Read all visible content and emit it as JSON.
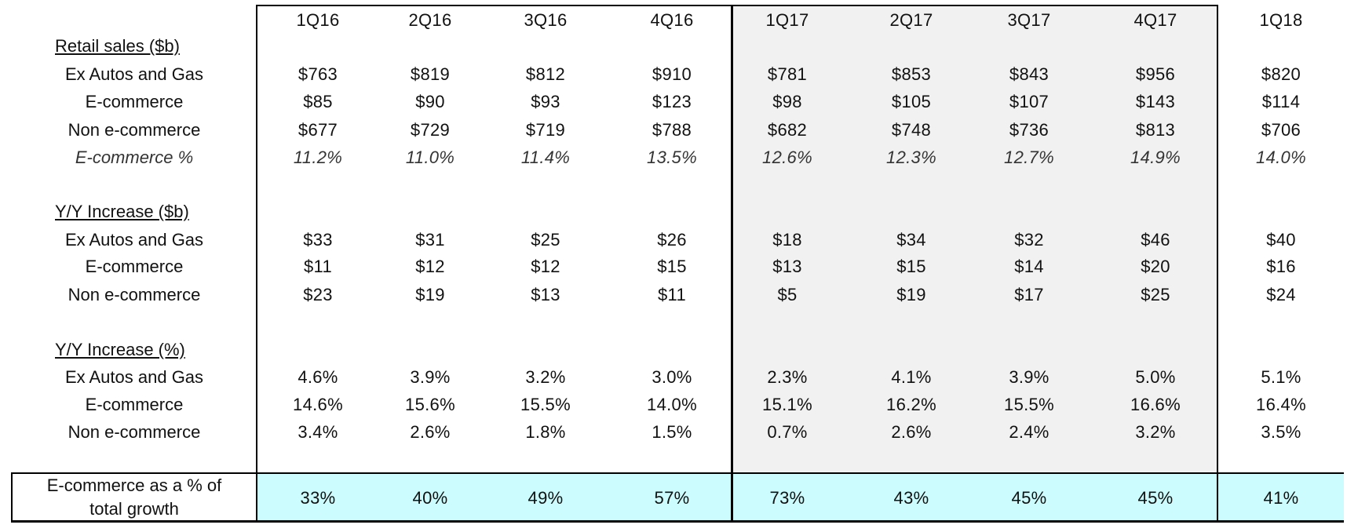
{
  "columns": [
    "1Q16",
    "2Q16",
    "3Q16",
    "4Q16",
    "1Q17",
    "2Q17",
    "3Q17",
    "4Q17",
    "1Q18"
  ],
  "sections": {
    "retail": {
      "title": "Retail sales ($b)",
      "rows": [
        {
          "label": "Ex Autos and Gas",
          "italic": false,
          "values": [
            "$763",
            "$819",
            "$812",
            "$910",
            "$781",
            "$853",
            "$843",
            "$956",
            "$820"
          ]
        },
        {
          "label": "E-commerce",
          "italic": false,
          "values": [
            "$85",
            "$90",
            "$93",
            "$123",
            "$98",
            "$105",
            "$107",
            "$143",
            "$114"
          ]
        },
        {
          "label": "Non e-commerce",
          "italic": false,
          "values": [
            "$677",
            "$729",
            "$719",
            "$788",
            "$682",
            "$748",
            "$736",
            "$813",
            "$706"
          ]
        },
        {
          "label": "E-commerce %",
          "italic": true,
          "values": [
            "11.2%",
            "11.0%",
            "11.4%",
            "13.5%",
            "12.6%",
            "12.3%",
            "12.7%",
            "14.9%",
            "14.0%"
          ]
        }
      ]
    },
    "yy_dollars": {
      "title": "Y/Y Increase ($b)",
      "rows": [
        {
          "label": "Ex Autos and Gas",
          "italic": false,
          "values": [
            "$33",
            "$31",
            "$25",
            "$26",
            "$18",
            "$34",
            "$32",
            "$46",
            "$40"
          ]
        },
        {
          "label": "E-commerce",
          "italic": false,
          "values": [
            "$11",
            "$12",
            "$12",
            "$15",
            "$13",
            "$15",
            "$14",
            "$20",
            "$16"
          ]
        },
        {
          "label": "Non e-commerce",
          "italic": false,
          "values": [
            "$23",
            "$19",
            "$13",
            "$11",
            "$5",
            "$19",
            "$17",
            "$25",
            "$24"
          ]
        }
      ]
    },
    "yy_percent": {
      "title": "Y/Y Increase (%)",
      "rows": [
        {
          "label": "Ex Autos and Gas",
          "italic": false,
          "values": [
            "4.6%",
            "3.9%",
            "3.2%",
            "3.0%",
            "2.3%",
            "4.1%",
            "3.9%",
            "5.0%",
            "5.1%"
          ]
        },
        {
          "label": "E-commerce",
          "italic": false,
          "values": [
            "14.6%",
            "15.6%",
            "15.5%",
            "14.0%",
            "15.1%",
            "16.2%",
            "15.5%",
            "16.6%",
            "16.4%"
          ]
        },
        {
          "label": "Non e-commerce",
          "italic": false,
          "values": [
            "3.4%",
            "2.6%",
            "1.8%",
            "1.5%",
            "0.7%",
            "2.6%",
            "2.4%",
            "3.2%",
            "3.5%"
          ]
        }
      ]
    }
  },
  "footer": {
    "label_line1": "E-commerce as a % of",
    "label_line2": "total growth",
    "values": [
      "33%",
      "40%",
      "49%",
      "57%",
      "73%",
      "43%",
      "45%",
      "45%",
      "41%"
    ]
  },
  "colors": {
    "shaded_2017": "#f1f1f1",
    "footer_highlight": "#ccfcfd",
    "border": "#000000"
  }
}
